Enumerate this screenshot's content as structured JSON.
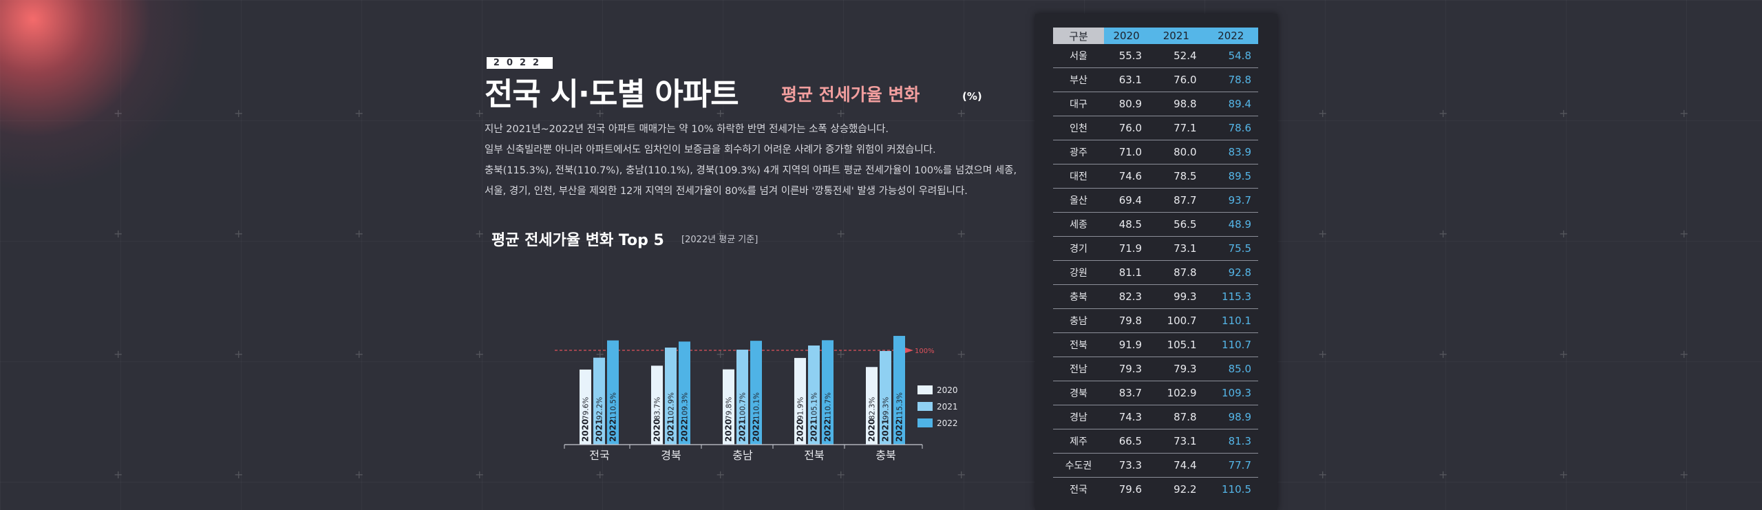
{
  "header": {
    "year_badge": "2022",
    "title_main": "전국 시·도별 아파트",
    "title_sub": "평균 전세가율 변화",
    "title_unit": "(%)"
  },
  "description": [
    "지난 2021년~2022년 전국 아파트 매매가는 약 10% 하락한 반면 전세가는 소폭 상승했습니다.",
    "일부 신축빌라뿐 아니라 아파트에서도 임차인이 보증금을 회수하기 어려운 사례가 증가할 위험이 커졌습니다.",
    "충북(115.3%), 전북(110.7%), 충남(110.1%), 경북(109.3%) 4개 지역의 아파트 평균 전세가율이 100%를 넘겼으며 세종,",
    "서울, 경기, 인천, 부산을 제외한 12개 지역의 전세가율이 80%를 넘겨 이른바 '깡통전세' 발생 가능성이 우려됩니다."
  ],
  "chart_data": {
    "type": "bar",
    "title": "평균 전세가율 변화 Top 5",
    "note": "[2022년 평균 기준]",
    "categories": [
      "전국",
      "경북",
      "충남",
      "전북",
      "충북"
    ],
    "series": [
      {
        "name": "2020",
        "color": "#e8f3fb",
        "values": [
          79.6,
          83.7,
          79.8,
          91.9,
          82.3
        ],
        "labels": [
          "79.6%",
          "83.7%",
          "79.8%",
          "91.9%",
          "82.3%"
        ]
      },
      {
        "name": "2021",
        "color": "#8fd0f2",
        "values": [
          92.2,
          102.9,
          100.7,
          105.1,
          99.3
        ],
        "labels": [
          "92.2%",
          "102.9%",
          "100.7%",
          "105.1%",
          "99.3%"
        ]
      },
      {
        "name": "2022",
        "color": "#4fb3e6",
        "values": [
          110.5,
          109.3,
          110.1,
          110.7,
          115.3
        ],
        "labels": [
          "110.5%",
          "109.3%",
          "110.1%",
          "110.7%",
          "115.3%"
        ]
      }
    ],
    "reference_line": {
      "value": 100,
      "label": "100%",
      "color": "#e0525c"
    },
    "ylim": [
      0,
      120
    ],
    "legend": [
      "2020",
      "2021",
      "2022"
    ],
    "legend_position": "right"
  },
  "table": {
    "headers": [
      "구분",
      "2020",
      "2021",
      "2022"
    ],
    "rows": [
      [
        "서울",
        "55.3",
        "52.4",
        "54.8"
      ],
      [
        "부산",
        "63.1",
        "76.0",
        "78.8"
      ],
      [
        "대구",
        "80.9",
        "98.8",
        "89.4"
      ],
      [
        "인천",
        "76.0",
        "77.1",
        "78.6"
      ],
      [
        "광주",
        "71.0",
        "80.0",
        "83.9"
      ],
      [
        "대전",
        "74.6",
        "78.5",
        "89.5"
      ],
      [
        "울산",
        "69.4",
        "87.7",
        "93.7"
      ],
      [
        "세종",
        "48.5",
        "56.5",
        "48.9"
      ],
      [
        "경기",
        "71.9",
        "73.1",
        "75.5"
      ],
      [
        "강원",
        "81.1",
        "87.8",
        "92.8"
      ],
      [
        "충북",
        "82.3",
        "99.3",
        "115.3"
      ],
      [
        "충남",
        "79.8",
        "100.7",
        "110.1"
      ],
      [
        "전북",
        "91.9",
        "105.1",
        "110.7"
      ],
      [
        "전남",
        "79.3",
        "79.3",
        "85.0"
      ],
      [
        "경북",
        "83.7",
        "102.9",
        "109.3"
      ],
      [
        "경남",
        "74.3",
        "87.8",
        "98.9"
      ],
      [
        "제주",
        "66.5",
        "73.1",
        "81.3"
      ],
      [
        "수도권",
        "73.3",
        "74.4",
        "77.7"
      ],
      [
        "전국",
        "79.6",
        "92.2",
        "110.5"
      ]
    ],
    "colors": {
      "header_label_bg": "#c4c6cc",
      "header_year_bg": "#55b6e8",
      "highlight": "#55b6e8"
    }
  }
}
